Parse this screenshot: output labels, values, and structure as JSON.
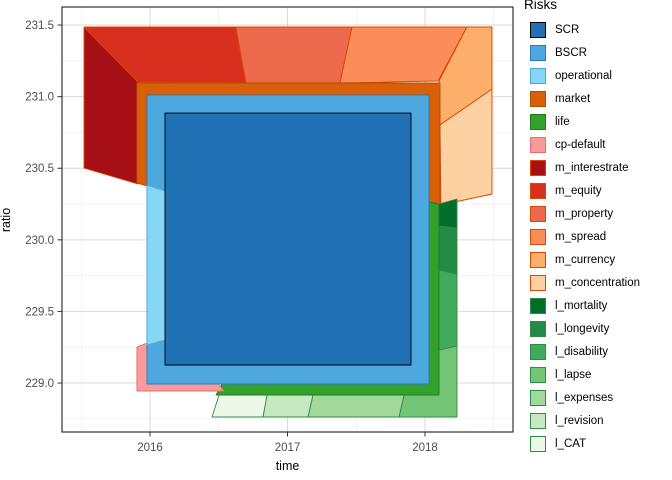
{
  "chart_data": {
    "type": "area",
    "description": "Nested polygon decomposition of solvency ratio risks over time (ggplot2 style)",
    "x_axis": {
      "title": "time",
      "range": [
        2015.36,
        2018.64
      ],
      "major_ticks": [
        2016,
        2017,
        2018
      ],
      "tick_labels": [
        "2016",
        "2017",
        "2018"
      ],
      "minor_ticks": [
        2015.5,
        2016.5,
        2017.5,
        2018.5
      ]
    },
    "y_axis": {
      "title": "ratio",
      "range": [
        228.658,
        231.626
      ],
      "major_ticks": [
        231.5,
        231.0,
        230.5,
        230.0,
        229.5,
        229.0
      ],
      "tick_labels": [
        "231.5",
        "231.0",
        "230.5",
        "230.0",
        "229.5",
        "229.0"
      ],
      "minor_ticks": [
        231.25,
        230.75,
        230.25,
        229.75,
        229.25,
        228.75
      ]
    },
    "grid": {
      "major_color": "#d9d9d9",
      "minor_color": "#ededed",
      "panel_border": "#333333",
      "panel_bg": "#ffffff"
    },
    "legend": {
      "title": "Risks",
      "items": [
        {
          "label": "SCR",
          "fill": "#2171b5",
          "stroke": "#000000"
        },
        {
          "label": "BSCR",
          "fill": "#4da8e0",
          "stroke": "#2b7bba"
        },
        {
          "label": "operational",
          "fill": "#85d7f5",
          "stroke": "#4aa8d8"
        },
        {
          "label": "market",
          "fill": "#d95f08",
          "stroke": "#b34d06"
        },
        {
          "label": "life",
          "fill": "#33a02c",
          "stroke": "#1e7a1e"
        },
        {
          "label": "cp-default",
          "fill": "#fa9b9b",
          "stroke": "#ef6a6a"
        },
        {
          "label": "m_interestrate",
          "fill": "#a50f15",
          "stroke": "#d94801"
        },
        {
          "label": "m_equity",
          "fill": "#d7301f",
          "stroke": "#d94801"
        },
        {
          "label": "m_property",
          "fill": "#ee6a4d",
          "stroke": "#d94801"
        },
        {
          "label": "m_spread",
          "fill": "#fb8d5b",
          "stroke": "#d94801"
        },
        {
          "label": "m_currency",
          "fill": "#fdae6b",
          "stroke": "#d94801"
        },
        {
          "label": "m_concentration",
          "fill": "#fdd0a2",
          "stroke": "#d94801"
        },
        {
          "label": "l_mortality",
          "fill": "#006d2c",
          "stroke": "#2e8b46"
        },
        {
          "label": "l_longevity",
          "fill": "#238b45",
          "stroke": "#2e8b46"
        },
        {
          "label": "l_disability",
          "fill": "#41ab5d",
          "stroke": "#2e8b46"
        },
        {
          "label": "l_lapse",
          "fill": "#74c476",
          "stroke": "#2e8b46"
        },
        {
          "label": "l_expenses",
          "fill": "#a1d99b",
          "stroke": "#2e8b46"
        },
        {
          "label": "l_revision",
          "fill": "#c7e9c0",
          "stroke": "#2e8b46"
        },
        {
          "label": "l_CAT",
          "fill": "#edf8e9",
          "stroke": "#2e8b46"
        }
      ]
    },
    "polygons": [
      {
        "risk": "m_interestrate",
        "points": [
          [
            2015.52,
            231.486
          ],
          [
            2015.913,
            231.102
          ],
          [
            2015.913,
            230.39
          ],
          [
            2015.52,
            230.501
          ]
        ]
      },
      {
        "risk": "m_equity",
        "points": [
          [
            2015.52,
            231.486
          ],
          [
            2016.625,
            231.486
          ],
          [
            2016.698,
            231.095
          ],
          [
            2015.913,
            231.102
          ]
        ]
      },
      {
        "risk": "m_property",
        "points": [
          [
            2016.625,
            231.486
          ],
          [
            2017.469,
            231.486
          ],
          [
            2017.382,
            231.095
          ],
          [
            2016.698,
            231.095
          ]
        ]
      },
      {
        "risk": "m_spread",
        "points": [
          [
            2017.469,
            231.486
          ],
          [
            2018.305,
            231.486
          ],
          [
            2018.095,
            231.109
          ],
          [
            2017.382,
            231.095
          ]
        ]
      },
      {
        "risk": "m_currency",
        "points": [
          [
            2018.305,
            231.486
          ],
          [
            2018.487,
            231.486
          ],
          [
            2018.487,
            231.053
          ],
          [
            2018.109,
            230.802
          ],
          [
            2018.102,
            231.109
          ]
        ]
      },
      {
        "risk": "m_concentration",
        "points": [
          [
            2018.487,
            231.053
          ],
          [
            2018.487,
            230.32
          ],
          [
            2018.116,
            230.243
          ],
          [
            2018.109,
            230.802
          ]
        ]
      },
      {
        "risk": "market",
        "points": [
          [
            2015.905,
            231.095
          ],
          [
            2018.109,
            231.095
          ],
          [
            2018.109,
            230.243
          ],
          [
            2018.029,
            230.264
          ],
          [
            2018.029,
            231.011
          ],
          [
            2015.978,
            231.011
          ],
          [
            2015.978,
            230.376
          ],
          [
            2015.905,
            230.397
          ]
        ]
      },
      {
        "risk": "l_mortality",
        "points": [
          [
            2018.102,
            230.25
          ],
          [
            2018.233,
            230.285
          ],
          [
            2018.233,
            230.082
          ],
          [
            2018.102,
            230.096
          ]
        ]
      },
      {
        "risk": "l_longevity",
        "points": [
          [
            2018.102,
            230.096
          ],
          [
            2018.233,
            230.082
          ],
          [
            2018.233,
            229.761
          ],
          [
            2018.102,
            229.789
          ]
        ]
      },
      {
        "risk": "l_disability",
        "points": [
          [
            2018.102,
            229.789
          ],
          [
            2018.233,
            229.761
          ],
          [
            2018.233,
            229.258
          ],
          [
            2018.102,
            229.23
          ]
        ]
      },
      {
        "risk": "l_lapse",
        "points": [
          [
            2018.102,
            229.23
          ],
          [
            2018.233,
            229.258
          ],
          [
            2018.233,
            228.763
          ],
          [
            2017.811,
            228.763
          ],
          [
            2017.847,
            228.916
          ],
          [
            2018.102,
            228.916
          ]
        ]
      },
      {
        "risk": "l_expenses",
        "points": [
          [
            2017.185,
            228.916
          ],
          [
            2017.847,
            228.916
          ],
          [
            2017.811,
            228.763
          ],
          [
            2017.149,
            228.763
          ]
        ]
      },
      {
        "risk": "l_revision",
        "points": [
          [
            2016.851,
            228.916
          ],
          [
            2017.185,
            228.916
          ],
          [
            2017.149,
            228.763
          ],
          [
            2016.822,
            228.763
          ]
        ]
      },
      {
        "risk": "l_CAT",
        "points": [
          [
            2016.502,
            228.916
          ],
          [
            2016.851,
            228.916
          ],
          [
            2016.822,
            228.763
          ],
          [
            2016.451,
            228.763
          ]
        ]
      },
      {
        "risk": "life",
        "points": [
          [
            2018.029,
            230.264
          ],
          [
            2018.102,
            230.25
          ],
          [
            2018.102,
            228.916
          ],
          [
            2016.48,
            228.916
          ],
          [
            2016.524,
            228.993
          ],
          [
            2018.029,
            228.993
          ]
        ]
      },
      {
        "risk": "cp-default",
        "points": [
          [
            2015.905,
            229.251
          ],
          [
            2015.978,
            229.279
          ],
          [
            2015.978,
            228.993
          ],
          [
            2016.495,
            228.993
          ],
          [
            2016.538,
            228.944
          ],
          [
            2015.905,
            228.944
          ]
        ]
      },
      {
        "risk": "BSCR",
        "rings": [
          [
            [
              2015.978,
              231.011
            ],
            [
              2018.029,
              231.011
            ],
            [
              2018.029,
              228.993
            ],
            [
              2015.978,
              228.993
            ]
          ],
          [
            [
              2016.109,
              230.885
            ],
            [
              2017.898,
              230.885
            ],
            [
              2017.898,
              229.126
            ],
            [
              2016.109,
              229.126
            ]
          ]
        ]
      },
      {
        "risk": "operational",
        "points": [
          [
            2015.978,
            230.383
          ],
          [
            2016.109,
            230.341
          ],
          [
            2016.109,
            229.3
          ],
          [
            2015.978,
            229.265
          ]
        ]
      },
      {
        "risk": "SCR",
        "points": [
          [
            2016.109,
            230.885
          ],
          [
            2017.898,
            230.885
          ],
          [
            2017.898,
            229.126
          ],
          [
            2016.109,
            229.126
          ]
        ]
      }
    ]
  }
}
